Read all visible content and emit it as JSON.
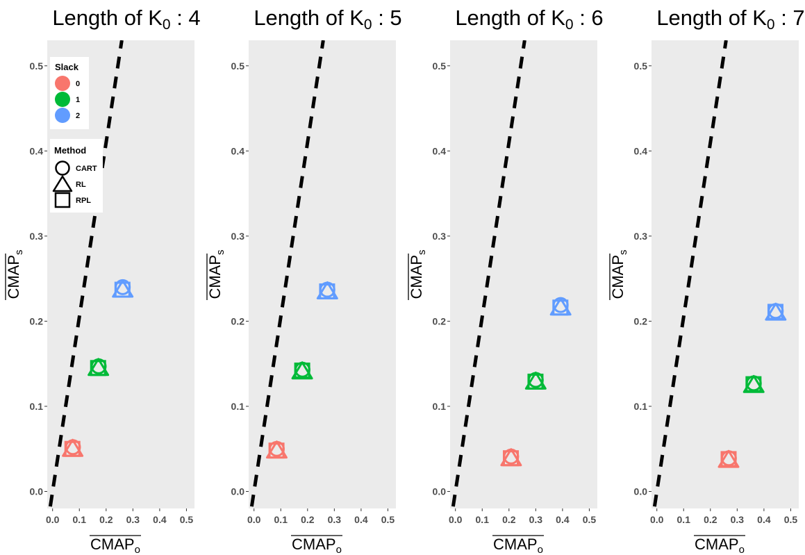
{
  "chart_data": [
    {
      "type": "scatter",
      "title_prefix": "Length of K",
      "title_subscript": "0",
      "title_suffix": " : 4",
      "xlabel_main": "CMAP",
      "xlabel_sub": "o",
      "ylabel_main": "CMAP",
      "ylabel_sub": "s",
      "xlim": [
        -0.02,
        0.53
      ],
      "ylim": [
        -0.02,
        0.53
      ],
      "x_ticks": [
        "0.0",
        "0.1",
        "0.2",
        "0.3",
        "0.4",
        "0.5"
      ],
      "y_ticks": [
        "0.0",
        "0.1",
        "0.2",
        "0.3",
        "0.4",
        "0.5"
      ],
      "reference_line": {
        "slope": 2.05,
        "intercept": 0.0,
        "style": "dashed",
        "color": "#000000"
      },
      "series": [
        {
          "slack": "0",
          "method": "CART",
          "x": 0.076,
          "y": 0.052
        },
        {
          "slack": "0",
          "method": "RL",
          "x": 0.075,
          "y": 0.05
        },
        {
          "slack": "0",
          "method": "RPL",
          "x": 0.074,
          "y": 0.05
        },
        {
          "slack": "1",
          "method": "CART",
          "x": 0.172,
          "y": 0.147
        },
        {
          "slack": "1",
          "method": "RL",
          "x": 0.171,
          "y": 0.145
        },
        {
          "slack": "1",
          "method": "RPL",
          "x": 0.17,
          "y": 0.145
        },
        {
          "slack": "2",
          "method": "CART",
          "x": 0.262,
          "y": 0.24
        },
        {
          "slack": "2",
          "method": "RL",
          "x": 0.262,
          "y": 0.237
        },
        {
          "slack": "2",
          "method": "RPL",
          "x": 0.261,
          "y": 0.237
        }
      ],
      "legend": true
    },
    {
      "type": "scatter",
      "title_prefix": "Length of K",
      "title_subscript": "0",
      "title_suffix": " : 5",
      "xlabel_main": "CMAP",
      "xlabel_sub": "o",
      "ylabel_main": "CMAP",
      "ylabel_sub": "s",
      "xlim": [
        -0.02,
        0.53
      ],
      "ylim": [
        -0.02,
        0.53
      ],
      "x_ticks": [
        "0.0",
        "0.1",
        "0.2",
        "0.3",
        "0.4",
        "0.5"
      ],
      "y_ticks": [
        "0.0",
        "0.1",
        "0.2",
        "0.3",
        "0.4",
        "0.5"
      ],
      "reference_line": {
        "slope": 2.05,
        "intercept": 0.0,
        "style": "dashed",
        "color": "#000000"
      },
      "series": [
        {
          "slack": "0",
          "method": "CART",
          "x": 0.085,
          "y": 0.05
        },
        {
          "slack": "0",
          "method": "RL",
          "x": 0.085,
          "y": 0.048
        },
        {
          "slack": "0",
          "method": "RPL",
          "x": 0.084,
          "y": 0.048
        },
        {
          "slack": "1",
          "method": "CART",
          "x": 0.181,
          "y": 0.143
        },
        {
          "slack": "1",
          "method": "RL",
          "x": 0.18,
          "y": 0.141
        },
        {
          "slack": "1",
          "method": "RPL",
          "x": 0.18,
          "y": 0.142
        },
        {
          "slack": "2",
          "method": "CART",
          "x": 0.274,
          "y": 0.237
        },
        {
          "slack": "2",
          "method": "RL",
          "x": 0.274,
          "y": 0.235
        },
        {
          "slack": "2",
          "method": "RPL",
          "x": 0.273,
          "y": 0.235
        }
      ],
      "legend": false
    },
    {
      "type": "scatter",
      "title_prefix": "Length of K",
      "title_subscript": "0",
      "title_suffix": " : 6",
      "xlabel_main": "CMAP",
      "xlabel_sub": "o",
      "ylabel_main": "CMAP",
      "ylabel_sub": "s",
      "xlim": [
        -0.02,
        0.53
      ],
      "ylim": [
        -0.02,
        0.53
      ],
      "x_ticks": [
        "0.0",
        "0.1",
        "0.2",
        "0.3",
        "0.4",
        "0.5"
      ],
      "y_ticks": [
        "0.0",
        "0.1",
        "0.2",
        "0.3",
        "0.4",
        "0.5"
      ],
      "reference_line": {
        "slope": 2.05,
        "intercept": 0.0,
        "style": "dashed",
        "color": "#000000"
      },
      "series": [
        {
          "slack": "0",
          "method": "CART",
          "x": 0.208,
          "y": 0.041
        },
        {
          "slack": "0",
          "method": "RL",
          "x": 0.208,
          "y": 0.039
        },
        {
          "slack": "0",
          "method": "RPL",
          "x": 0.207,
          "y": 0.039
        },
        {
          "slack": "1",
          "method": "CART",
          "x": 0.3,
          "y": 0.131
        },
        {
          "slack": "1",
          "method": "RL",
          "x": 0.3,
          "y": 0.129
        },
        {
          "slack": "1",
          "method": "RPL",
          "x": 0.299,
          "y": 0.129
        },
        {
          "slack": "2",
          "method": "CART",
          "x": 0.393,
          "y": 0.219
        },
        {
          "slack": "2",
          "method": "RL",
          "x": 0.393,
          "y": 0.216
        },
        {
          "slack": "2",
          "method": "RPL",
          "x": 0.392,
          "y": 0.216
        }
      ],
      "legend": false
    },
    {
      "type": "scatter",
      "title_prefix": "Length of K",
      "title_subscript": "0",
      "title_suffix": " : 7",
      "xlabel_main": "CMAP",
      "xlabel_sub": "o",
      "ylabel_main": "CMAP",
      "ylabel_sub": "s",
      "xlim": [
        -0.02,
        0.53
      ],
      "ylim": [
        -0.02,
        0.53
      ],
      "x_ticks": [
        "0.0",
        "0.1",
        "0.2",
        "0.3",
        "0.4",
        "0.5"
      ],
      "y_ticks": [
        "0.0",
        "0.1",
        "0.2",
        "0.3",
        "0.4",
        "0.5"
      ],
      "reference_line": {
        "slope": 2.05,
        "intercept": 0.0,
        "style": "dashed",
        "color": "#000000"
      },
      "series": [
        {
          "slack": "0",
          "method": "CART",
          "x": 0.269,
          "y": 0.039
        },
        {
          "slack": "0",
          "method": "RL",
          "x": 0.268,
          "y": 0.037
        },
        {
          "slack": "0",
          "method": "RPL",
          "x": 0.268,
          "y": 0.038
        },
        {
          "slack": "1",
          "method": "CART",
          "x": 0.362,
          "y": 0.127
        },
        {
          "slack": "1",
          "method": "RL",
          "x": 0.362,
          "y": 0.125
        },
        {
          "slack": "1",
          "method": "RPL",
          "x": 0.361,
          "y": 0.126
        },
        {
          "slack": "2",
          "method": "CART",
          "x": 0.444,
          "y": 0.212
        },
        {
          "slack": "2",
          "method": "RL",
          "x": 0.444,
          "y": 0.21
        },
        {
          "slack": "2",
          "method": "RPL",
          "x": 0.443,
          "y": 0.211
        }
      ],
      "legend": false
    }
  ],
  "legend": {
    "slack_title": "Slack",
    "slack_items": [
      {
        "label": "0",
        "color": "#F8766D"
      },
      {
        "label": "1",
        "color": "#00BA38"
      },
      {
        "label": "2",
        "color": "#619CFF"
      }
    ],
    "method_title": "Method",
    "method_items": [
      {
        "label": "CART",
        "shape": "circle"
      },
      {
        "label": "RL",
        "shape": "triangle"
      },
      {
        "label": "RPL",
        "shape": "square"
      }
    ]
  },
  "colors": {
    "panel_background": "#EBEBEB",
    "slack_0": "#F8766D",
    "slack_1": "#00BA38",
    "slack_2": "#619CFF"
  }
}
